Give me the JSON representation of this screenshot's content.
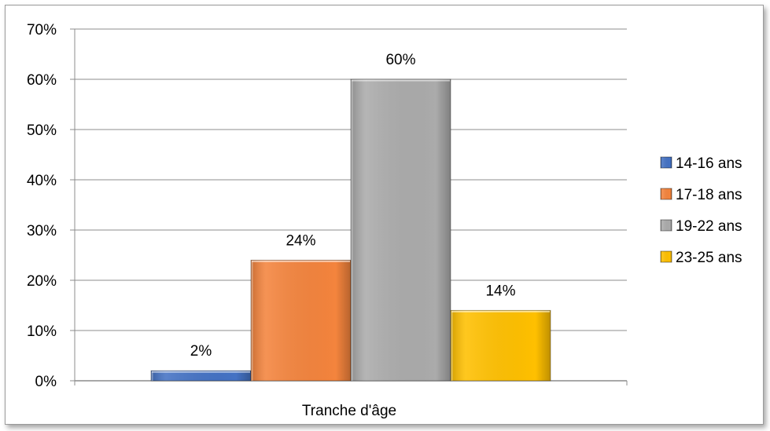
{
  "chart_data": {
    "type": "bar",
    "categories": [
      "Tranche d'âge"
    ],
    "series": [
      {
        "name": "14-16 ans",
        "values": [
          2
        ],
        "label": "2%",
        "color": "#4472C4"
      },
      {
        "name": "17-18 ans",
        "values": [
          24
        ],
        "label": "24%",
        "color": "#F4843D"
      },
      {
        "name": "19-22 ans",
        "values": [
          60
        ],
        "label": "60%",
        "color": "#ABABAB"
      },
      {
        "name": "23-25 ans",
        "values": [
          14
        ],
        "label": "14%",
        "color": "#FFC000"
      }
    ],
    "yticks": [
      "0%",
      "10%",
      "20%",
      "30%",
      "40%",
      "50%",
      "60%",
      "70%"
    ],
    "ylim": [
      0,
      70
    ],
    "xlabel": "Tranche d'âge",
    "grid": true,
    "legend": "right"
  }
}
